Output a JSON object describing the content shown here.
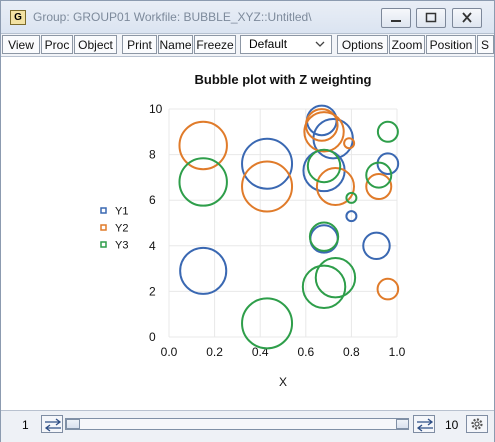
{
  "window": {
    "app_icon": "G",
    "title": "Group: GROUP01   Workfile: BUBBLE_XYZ::Untitled\\"
  },
  "toolbar": {
    "buttons": [
      "View",
      "Proc",
      "Object",
      "Print",
      "Name",
      "Freeze",
      "Options",
      "Zoom",
      "Position",
      "S"
    ],
    "template_select": "Default"
  },
  "chart_data": {
    "type": "scatter",
    "title": "Bubble plot with Z weighting",
    "xlabel": "X",
    "ylabel": "",
    "xlim": [
      0.0,
      1.0
    ],
    "ylim": [
      0,
      10
    ],
    "x_ticks": [
      "0.0",
      "0.2",
      "0.4",
      "0.6",
      "0.8",
      "1.0"
    ],
    "y_ticks": [
      "0",
      "2",
      "4",
      "6",
      "8",
      "10"
    ],
    "grid": true,
    "legend_position": "left",
    "series": [
      {
        "name": "Y1",
        "color": "#3a68b2",
        "points": [
          {
            "x": 0.15,
            "y": 2.9,
            "z": 0.85
          },
          {
            "x": 0.43,
            "y": 7.6,
            "z": 1.0
          },
          {
            "x": 0.67,
            "y": 9.5,
            "z": 0.35
          },
          {
            "x": 0.72,
            "y": 8.7,
            "z": 0.62
          },
          {
            "x": 0.68,
            "y": 7.3,
            "z": 0.68
          },
          {
            "x": 0.68,
            "y": 4.3,
            "z": 0.3
          },
          {
            "x": 0.91,
            "y": 4.0,
            "z": 0.28
          },
          {
            "x": 0.96,
            "y": 7.6,
            "z": 0.17
          },
          {
            "x": 0.8,
            "y": 5.3,
            "z": 0.04
          }
        ]
      },
      {
        "name": "Y2",
        "color": "#e07b2a",
        "points": [
          {
            "x": 0.15,
            "y": 8.4,
            "z": 0.9
          },
          {
            "x": 0.43,
            "y": 6.6,
            "z": 1.0
          },
          {
            "x": 0.68,
            "y": 9.0,
            "z": 0.62
          },
          {
            "x": 0.67,
            "y": 9.3,
            "z": 0.4
          },
          {
            "x": 0.73,
            "y": 6.6,
            "z": 0.55
          },
          {
            "x": 0.92,
            "y": 6.6,
            "z": 0.25
          },
          {
            "x": 0.96,
            "y": 2.1,
            "z": 0.17
          },
          {
            "x": 0.79,
            "y": 8.5,
            "z": 0.04
          }
        ]
      },
      {
        "name": "Y3",
        "color": "#2e9e4a",
        "points": [
          {
            "x": 0.15,
            "y": 6.8,
            "z": 0.9
          },
          {
            "x": 0.43,
            "y": 0.6,
            "z": 1.0
          },
          {
            "x": 0.68,
            "y": 2.2,
            "z": 0.72
          },
          {
            "x": 0.73,
            "y": 2.6,
            "z": 0.62
          },
          {
            "x": 0.68,
            "y": 7.5,
            "z": 0.42
          },
          {
            "x": 0.68,
            "y": 4.4,
            "z": 0.32
          },
          {
            "x": 0.92,
            "y": 7.1,
            "z": 0.25
          },
          {
            "x": 0.96,
            "y": 9.0,
            "z": 0.16
          },
          {
            "x": 0.8,
            "y": 6.1,
            "z": 0.04
          }
        ]
      }
    ]
  },
  "statusbar": {
    "start": "1",
    "end": "10"
  },
  "colors": {
    "title_bar": "#dbe4f1",
    "border": "#8c9bb0"
  }
}
